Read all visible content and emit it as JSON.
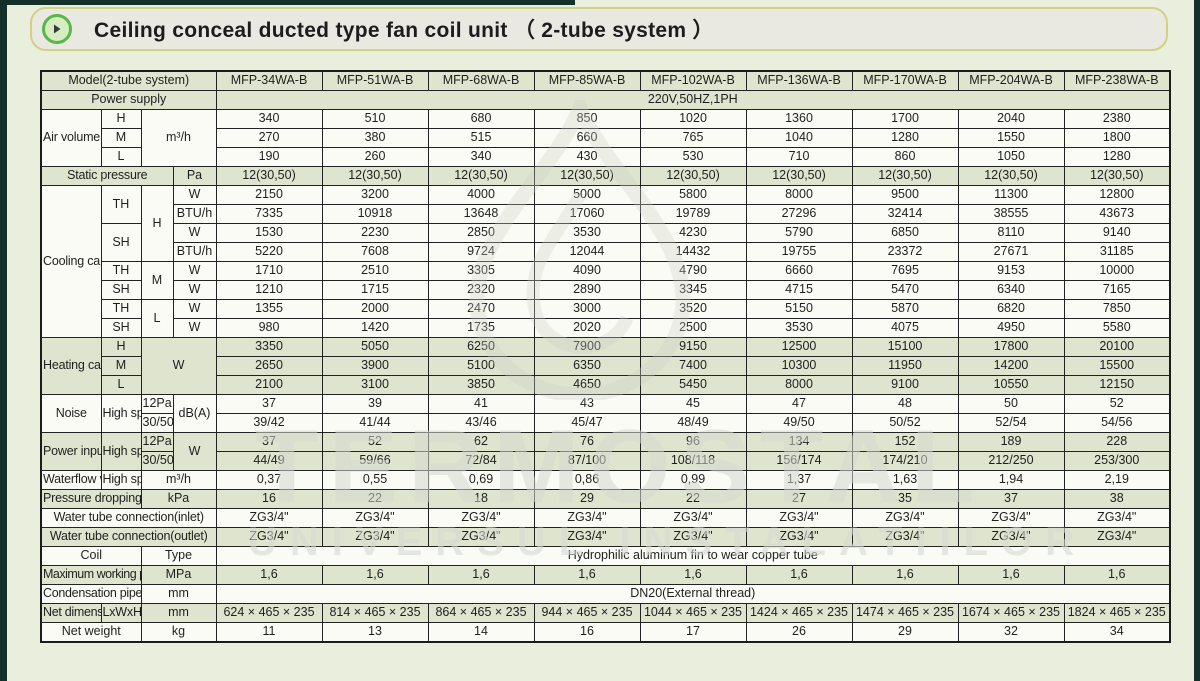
{
  "banner": {
    "title": "Ceiling conceal ducted type fan coil unit （ 2-tube system ）"
  },
  "watermark": {
    "line1": "TERMOSTAL",
    "line2": "UNIVERSUL INSTALATIILOR"
  },
  "colors": {
    "row_green": "#dfe4cf",
    "row_white": "#fbfbf5",
    "banner_border": "#d2d083",
    "icon_green": "#57b748",
    "edge_dark": "#14302b"
  },
  "table": {
    "rows": [
      {
        "bg": "g",
        "cells": [
          {
            "t": "Model(2-tube system)",
            "cs": 4
          },
          {
            "t": "MFP-34WA-B",
            "c": "mdl"
          },
          {
            "t": "MFP-51WA-B",
            "c": "mdl"
          },
          {
            "t": "MFP-68WA-B",
            "c": "mdl"
          },
          {
            "t": "MFP-85WA-B",
            "c": "mdl"
          },
          {
            "t": "MFP-102WA-B",
            "c": "mdl"
          },
          {
            "t": "MFP-136WA-B",
            "c": "mdl"
          },
          {
            "t": "MFP-170WA-B",
            "c": "mdl"
          },
          {
            "t": "MFP-204WA-B",
            "c": "mdl"
          },
          {
            "t": "MFP-238WA-B",
            "c": "mdl"
          }
        ]
      },
      {
        "bg": "g",
        "cells": [
          {
            "t": "Power supply",
            "cs": 4
          },
          {
            "t": "220V,50HZ,1PH",
            "cs": 9
          }
        ]
      },
      {
        "bg": "w",
        "cells": [
          {
            "t": "Air volume",
            "rs": 3,
            "c": "h1l"
          },
          {
            "t": "H"
          },
          {
            "t": "m³/h",
            "rs": 3,
            "cs": 2,
            "c": "u"
          },
          {
            "t": "340"
          },
          {
            "t": "510"
          },
          {
            "t": "680"
          },
          {
            "t": "850"
          },
          {
            "t": "1020"
          },
          {
            "t": "1360"
          },
          {
            "t": "1700"
          },
          {
            "t": "2040"
          },
          {
            "t": "2380"
          }
        ]
      },
      {
        "bg": "w",
        "cells": [
          {
            "t": "M"
          },
          {
            "t": "270"
          },
          {
            "t": "380"
          },
          {
            "t": "515"
          },
          {
            "t": "660"
          },
          {
            "t": "765"
          },
          {
            "t": "1040"
          },
          {
            "t": "1280"
          },
          {
            "t": "1550"
          },
          {
            "t": "1800"
          }
        ]
      },
      {
        "bg": "w",
        "cells": [
          {
            "t": "L"
          },
          {
            "t": "190"
          },
          {
            "t": "260"
          },
          {
            "t": "340"
          },
          {
            "t": "430"
          },
          {
            "t": "530"
          },
          {
            "t": "710"
          },
          {
            "t": "860"
          },
          {
            "t": "1050"
          },
          {
            "t": "1280"
          }
        ]
      },
      {
        "bg": "g",
        "cells": [
          {
            "t": "Static pressure",
            "cs": 3,
            "c": "sm"
          },
          {
            "t": "Pa",
            "c": "u"
          },
          {
            "t": "12(30,50)"
          },
          {
            "t": "12(30,50)"
          },
          {
            "t": "12(30,50)"
          },
          {
            "t": "12(30,50)"
          },
          {
            "t": "12(30,50)"
          },
          {
            "t": "12(30,50)"
          },
          {
            "t": "12(30,50)"
          },
          {
            "t": "12(30,50)"
          },
          {
            "t": "12(30,50)"
          }
        ]
      },
      {
        "bg": "w",
        "cells": [
          {
            "t": "Cooling capacity",
            "rs": 8,
            "c": "h1l"
          },
          {
            "t": "TH",
            "rs": 2
          },
          {
            "t": "H",
            "rs": 4
          },
          {
            "t": "W",
            "c": "u"
          },
          {
            "t": "2150"
          },
          {
            "t": "3200"
          },
          {
            "t": "4000"
          },
          {
            "t": "5000"
          },
          {
            "t": "5800"
          },
          {
            "t": "8000"
          },
          {
            "t": "9500"
          },
          {
            "t": "11300"
          },
          {
            "t": "12800"
          }
        ]
      },
      {
        "bg": "w",
        "cells": [
          {
            "t": "BTU/h",
            "c": "u"
          },
          {
            "t": "7335"
          },
          {
            "t": "10918"
          },
          {
            "t": "13648"
          },
          {
            "t": "17060"
          },
          {
            "t": "19789"
          },
          {
            "t": "27296"
          },
          {
            "t": "32414"
          },
          {
            "t": "38555"
          },
          {
            "t": "43673"
          }
        ]
      },
      {
        "bg": "w",
        "cells": [
          {
            "t": "SH",
            "rs": 2
          },
          {
            "t": "W",
            "c": "u"
          },
          {
            "t": "1530"
          },
          {
            "t": "2230"
          },
          {
            "t": "2850"
          },
          {
            "t": "3530"
          },
          {
            "t": "4230"
          },
          {
            "t": "5790"
          },
          {
            "t": "6850"
          },
          {
            "t": "8110"
          },
          {
            "t": "9140"
          }
        ]
      },
      {
        "bg": "w",
        "cells": [
          {
            "t": "BTU/h",
            "c": "u"
          },
          {
            "t": "5220"
          },
          {
            "t": "7608"
          },
          {
            "t": "9724"
          },
          {
            "t": "12044"
          },
          {
            "t": "14432"
          },
          {
            "t": "19755"
          },
          {
            "t": "23372"
          },
          {
            "t": "27671"
          },
          {
            "t": "31185"
          }
        ]
      },
      {
        "bg": "w",
        "cells": [
          {
            "t": "TH"
          },
          {
            "t": "M",
            "rs": 2
          },
          {
            "t": "W",
            "c": "u"
          },
          {
            "t": "1710"
          },
          {
            "t": "2510"
          },
          {
            "t": "3305"
          },
          {
            "t": "4090"
          },
          {
            "t": "4790"
          },
          {
            "t": "6660"
          },
          {
            "t": "7695"
          },
          {
            "t": "9153"
          },
          {
            "t": "10000"
          }
        ]
      },
      {
        "bg": "w",
        "cells": [
          {
            "t": "SH"
          },
          {
            "t": "W",
            "c": "u"
          },
          {
            "t": "1210"
          },
          {
            "t": "1715"
          },
          {
            "t": "2320"
          },
          {
            "t": "2890"
          },
          {
            "t": "3345"
          },
          {
            "t": "4715"
          },
          {
            "t": "5470"
          },
          {
            "t": "6340"
          },
          {
            "t": "7165"
          }
        ]
      },
      {
        "bg": "w",
        "cells": [
          {
            "t": "TH"
          },
          {
            "t": "L",
            "rs": 2
          },
          {
            "t": "W",
            "c": "u"
          },
          {
            "t": "1355"
          },
          {
            "t": "2000"
          },
          {
            "t": "2470"
          },
          {
            "t": "3000"
          },
          {
            "t": "3520"
          },
          {
            "t": "5150"
          },
          {
            "t": "5870"
          },
          {
            "t": "6820"
          },
          {
            "t": "7850"
          }
        ]
      },
      {
        "bg": "w",
        "cells": [
          {
            "t": "SH"
          },
          {
            "t": "W",
            "c": "u"
          },
          {
            "t": "980"
          },
          {
            "t": "1420"
          },
          {
            "t": "1735"
          },
          {
            "t": "2020"
          },
          {
            "t": "2500"
          },
          {
            "t": "3530"
          },
          {
            "t": "4075"
          },
          {
            "t": "4950"
          },
          {
            "t": "5580"
          }
        ]
      },
      {
        "bg": "g",
        "cells": [
          {
            "t": "Heating capacity",
            "rs": 3,
            "c": "h1l"
          },
          {
            "t": "H"
          },
          {
            "t": "W",
            "rs": 3,
            "cs": 2,
            "c": "u"
          },
          {
            "t": "3350"
          },
          {
            "t": "5050"
          },
          {
            "t": "6250"
          },
          {
            "t": "7900"
          },
          {
            "t": "9150"
          },
          {
            "t": "12500"
          },
          {
            "t": "15100"
          },
          {
            "t": "17800"
          },
          {
            "t": "20100"
          }
        ]
      },
      {
        "bg": "g",
        "cells": [
          {
            "t": "M"
          },
          {
            "t": "2650"
          },
          {
            "t": "3900"
          },
          {
            "t": "5100"
          },
          {
            "t": "6350"
          },
          {
            "t": "7400"
          },
          {
            "t": "10300"
          },
          {
            "t": "11950"
          },
          {
            "t": "14200"
          },
          {
            "t": "15500"
          }
        ]
      },
      {
        "bg": "g",
        "cells": [
          {
            "t": "L"
          },
          {
            "t": "2100"
          },
          {
            "t": "3100"
          },
          {
            "t": "3850"
          },
          {
            "t": "4650"
          },
          {
            "t": "5450"
          },
          {
            "t": "8000"
          },
          {
            "t": "9100"
          },
          {
            "t": "10550"
          },
          {
            "t": "12150"
          }
        ]
      },
      {
        "bg": "w",
        "cells": [
          {
            "t": "Noise",
            "rs": 2,
            "c": "h1l"
          },
          {
            "t": "High speed",
            "rs": 2,
            "c": "xs"
          },
          {
            "t": "12Pa",
            "c": "u"
          },
          {
            "t": "dB(A)",
            "rs": 2,
            "c": "u"
          },
          {
            "t": "37"
          },
          {
            "t": "39"
          },
          {
            "t": "41"
          },
          {
            "t": "43"
          },
          {
            "t": "45"
          },
          {
            "t": "47"
          },
          {
            "t": "48"
          },
          {
            "t": "50"
          },
          {
            "t": "52"
          }
        ]
      },
      {
        "bg": "w",
        "cells": [
          {
            "t": "30/50",
            "c": "u"
          },
          {
            "t": "39/42"
          },
          {
            "t": "41/44"
          },
          {
            "t": "43/46"
          },
          {
            "t": "45/47"
          },
          {
            "t": "48/49"
          },
          {
            "t": "49/50"
          },
          {
            "t": "50/52"
          },
          {
            "t": "52/54"
          },
          {
            "t": "54/56"
          }
        ]
      },
      {
        "bg": "g",
        "cells": [
          {
            "t": "Power input",
            "rs": 2,
            "c": "h1l"
          },
          {
            "t": "High speed",
            "rs": 2,
            "c": "xs"
          },
          {
            "t": "12Pa",
            "c": "u"
          },
          {
            "t": "W",
            "rs": 2,
            "c": "u"
          },
          {
            "t": "37"
          },
          {
            "t": "52"
          },
          {
            "t": "62"
          },
          {
            "t": "76"
          },
          {
            "t": "96"
          },
          {
            "t": "134"
          },
          {
            "t": "152"
          },
          {
            "t": "189"
          },
          {
            "t": "228"
          }
        ]
      },
      {
        "bg": "g",
        "cells": [
          {
            "t": "30/50",
            "c": "u"
          },
          {
            "t": "44/49"
          },
          {
            "t": "59/66"
          },
          {
            "t": "72/84"
          },
          {
            "t": "87/100"
          },
          {
            "t": "108/118"
          },
          {
            "t": "156/174"
          },
          {
            "t": "174/210"
          },
          {
            "t": "212/250"
          },
          {
            "t": "253/300"
          }
        ]
      },
      {
        "bg": "w",
        "cells": [
          {
            "t": "Waterflow volume",
            "c": "xs"
          },
          {
            "t": "High speed",
            "c": "xs"
          },
          {
            "t": "m³/h",
            "cs": 2,
            "c": "u"
          },
          {
            "t": "0,37"
          },
          {
            "t": "0,55"
          },
          {
            "t": "0,69"
          },
          {
            "t": "0,86"
          },
          {
            "t": "0,99"
          },
          {
            "t": "1,37"
          },
          {
            "t": "1,63"
          },
          {
            "t": "1,94"
          },
          {
            "t": "2,19"
          }
        ]
      },
      {
        "bg": "g",
        "cells": [
          {
            "t": "Pressure dropping",
            "cs": 2,
            "c": "sm"
          },
          {
            "t": "kPa",
            "cs": 2,
            "c": "u"
          },
          {
            "t": "16"
          },
          {
            "t": "22"
          },
          {
            "t": "18"
          },
          {
            "t": "29"
          },
          {
            "t": "22"
          },
          {
            "t": "27"
          },
          {
            "t": "35"
          },
          {
            "t": "37"
          },
          {
            "t": "38"
          }
        ]
      },
      {
        "bg": "w",
        "cells": [
          {
            "t": "Water tube connection(inlet)",
            "cs": 4,
            "c": "sm"
          },
          {
            "t": "ZG3/4\""
          },
          {
            "t": "ZG3/4\""
          },
          {
            "t": "ZG3/4\""
          },
          {
            "t": "ZG3/4\""
          },
          {
            "t": "ZG3/4\""
          },
          {
            "t": "ZG3/4\""
          },
          {
            "t": "ZG3/4\""
          },
          {
            "t": "ZG3/4\""
          },
          {
            "t": "ZG3/4\""
          }
        ]
      },
      {
        "bg": "g",
        "cells": [
          {
            "t": "Water tube connection(outlet)",
            "cs": 4,
            "c": "sm"
          },
          {
            "t": "ZG3/4\""
          },
          {
            "t": "ZG3/4\""
          },
          {
            "t": "ZG3/4\""
          },
          {
            "t": "ZG3/4\""
          },
          {
            "t": "ZG3/4\""
          },
          {
            "t": "ZG3/4\""
          },
          {
            "t": "ZG3/4\""
          },
          {
            "t": "ZG3/4\""
          },
          {
            "t": "ZG3/4\""
          }
        ]
      },
      {
        "bg": "w",
        "cells": [
          {
            "t": "Coil",
            "cs": 2
          },
          {
            "t": "Type",
            "cs": 2
          },
          {
            "t": "Hydrophilic aluminum fin to wear  copper tube",
            "cs": 9
          }
        ]
      },
      {
        "bg": "g",
        "cells": [
          {
            "t": "Maximum working pressure",
            "cs": 2,
            "c": "xs2"
          },
          {
            "t": "MPa",
            "cs": 2,
            "c": "u"
          },
          {
            "t": "1,6"
          },
          {
            "t": "1,6"
          },
          {
            "t": "1,6"
          },
          {
            "t": "1,6"
          },
          {
            "t": "1,6"
          },
          {
            "t": "1,6"
          },
          {
            "t": "1,6"
          },
          {
            "t": "1,6"
          },
          {
            "t": "1,6"
          }
        ]
      },
      {
        "bg": "w",
        "cells": [
          {
            "t": "Condensation pipe size (diameter)",
            "cs": 2,
            "c": "xs3"
          },
          {
            "t": "mm",
            "cs": 2,
            "c": "u"
          },
          {
            "t": "DN20(External thread)",
            "cs": 9
          }
        ]
      },
      {
        "bg": "g",
        "cells": [
          {
            "t": "Net dimension",
            "c": "xs3"
          },
          {
            "t": "LxWxH",
            "c": "sm"
          },
          {
            "t": "mm",
            "cs": 2,
            "c": "u"
          },
          {
            "t": "624 × 465 × 235",
            "c": "dim"
          },
          {
            "t": "814 × 465 × 235",
            "c": "dim"
          },
          {
            "t": "864 × 465 × 235",
            "c": "dim"
          },
          {
            "t": "944 × 465 × 235",
            "c": "dim"
          },
          {
            "t": "1044 × 465 × 235",
            "c": "dim"
          },
          {
            "t": "1424 × 465 × 235",
            "c": "dim"
          },
          {
            "t": "1474 × 465 × 235",
            "c": "dim"
          },
          {
            "t": "1674 × 465 × 235",
            "c": "dim"
          },
          {
            "t": "1824 × 465 × 235",
            "c": "dim"
          }
        ]
      },
      {
        "bg": "w",
        "cells": [
          {
            "t": "Net weight",
            "cs": 2
          },
          {
            "t": "kg",
            "cs": 2,
            "c": "u"
          },
          {
            "t": "11"
          },
          {
            "t": "13"
          },
          {
            "t": "14"
          },
          {
            "t": "16"
          },
          {
            "t": "17"
          },
          {
            "t": "26"
          },
          {
            "t": "29"
          },
          {
            "t": "32"
          },
          {
            "t": "34"
          }
        ]
      }
    ]
  }
}
